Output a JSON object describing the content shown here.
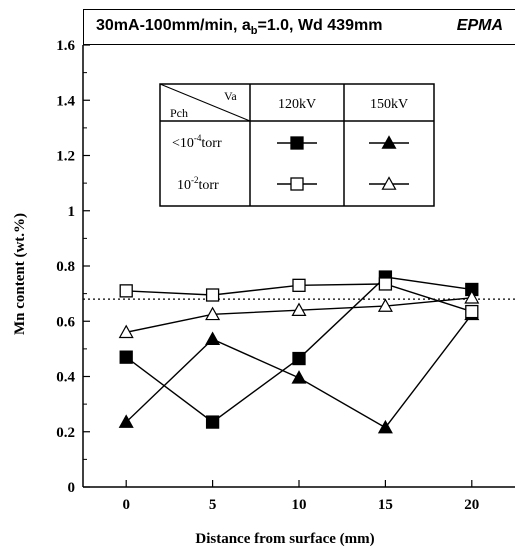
{
  "title": {
    "prefix": "30mA-100mm/min, a",
    "subscript": "b",
    "suffix": "=1.0, Wd 439mm",
    "method": "EPMA"
  },
  "legend": {
    "row_header": "Pch",
    "col_header": "Va",
    "columns": [
      "120kV",
      "150kV"
    ],
    "rows": [
      {
        "pressure_base": "<10",
        "pressure_exp": "-4",
        "pressure_unit": "torr"
      },
      {
        "pressure_base": "10",
        "pressure_exp": "-2",
        "pressure_unit": "torr"
      }
    ]
  },
  "chart_data": {
    "type": "line",
    "xlabel": "Distance from surface (mm)",
    "ylabel": "Mn content (wt.%)",
    "xlim": [
      -2.5,
      22.5
    ],
    "ylim": [
      0,
      1.6
    ],
    "xticks": [
      0,
      5,
      10,
      15,
      20
    ],
    "yticks": [
      0,
      0.2,
      0.4,
      0.6,
      0.8,
      1,
      1.2,
      1.4,
      1.6
    ],
    "ytick_labels": [
      "0",
      "0.2",
      "0.4",
      "0.6",
      "0.8",
      "1",
      "1.2",
      "1.4",
      "1.6"
    ],
    "x": [
      0,
      5,
      10,
      15,
      20
    ],
    "series": [
      {
        "voltage": "120kV",
        "pressure": "<10-4torr",
        "marker": "square-filled",
        "values": [
          0.47,
          0.235,
          0.465,
          0.76,
          0.715
        ]
      },
      {
        "voltage": "150kV",
        "pressure": "<10-4torr",
        "marker": "triangle-filled",
        "values": [
          0.235,
          0.535,
          0.395,
          0.215,
          0.625
        ]
      },
      {
        "voltage": "120kV",
        "pressure": "10-2torr",
        "marker": "square-open",
        "values": [
          0.71,
          0.695,
          0.73,
          0.735,
          0.635
        ]
      },
      {
        "voltage": "150kV",
        "pressure": "10-2torr",
        "marker": "triangle-open",
        "values": [
          0.56,
          0.625,
          0.64,
          0.655,
          0.685
        ]
      }
    ],
    "reference_line": {
      "value": 0.68,
      "style": "dotted"
    },
    "grid": false,
    "legend_position": "top-left"
  }
}
